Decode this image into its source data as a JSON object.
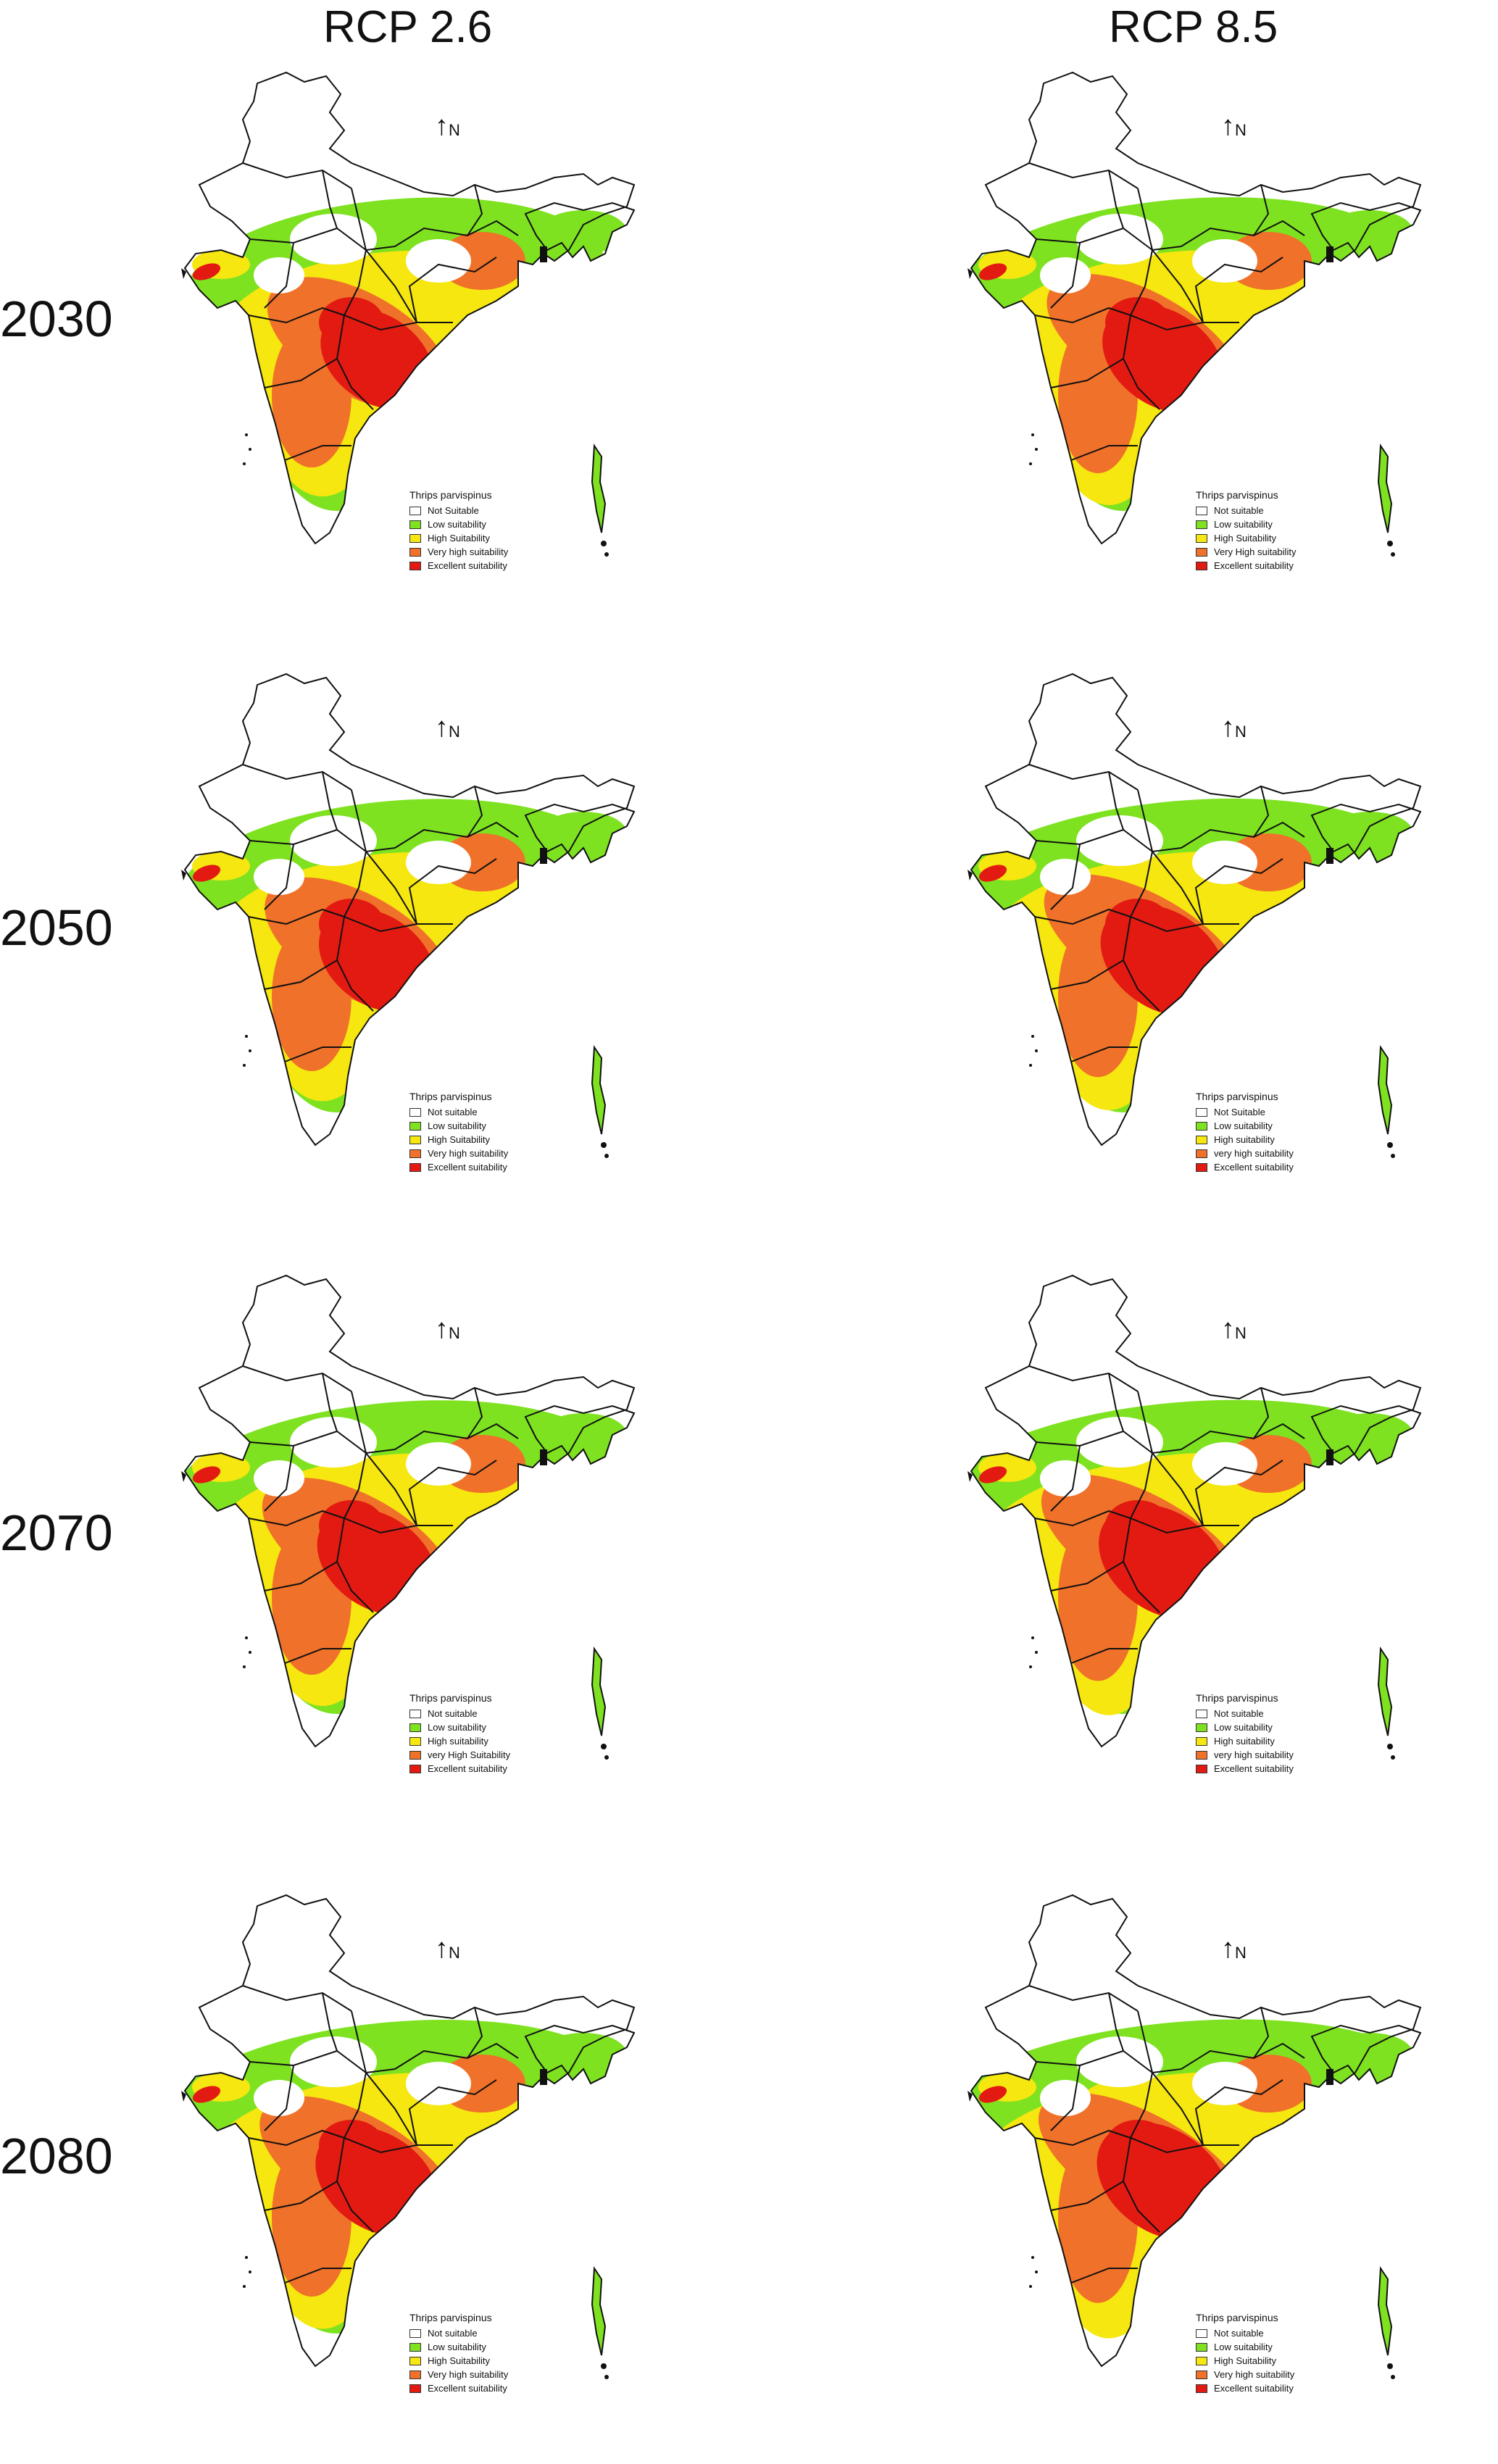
{
  "columns": [
    "RCP 2.6",
    "RCP 8.5"
  ],
  "years": [
    "2030",
    "2050",
    "2070",
    "2080"
  ],
  "north_label": "N",
  "colors": {
    "not_suitable": "#ffffff",
    "low": "#7ee221",
    "high": "#f5e70f",
    "very_high": "#f0712a",
    "excellent": "#e31a12",
    "border": "#111111"
  },
  "panels": [
    {
      "col": 0,
      "row": 0,
      "legend": {
        "title": "Thrips parvispinus",
        "items": [
          "Not Suitable",
          "Low suitability",
          "High Suitability",
          "Very high suitability",
          "Excellent suitability"
        ]
      }
    },
    {
      "col": 1,
      "row": 0,
      "legend": {
        "title": "Thrips parvispinus",
        "items": [
          "Not suitable",
          "Low suitability",
          "High Suitability",
          "Very High suitability",
          "Excellent suitability"
        ]
      }
    },
    {
      "col": 0,
      "row": 1,
      "legend": {
        "title": "Thrips parvispinus",
        "items": [
          "Not suitable",
          "Low suitability",
          "High Suitability",
          "Very high suitability",
          "Excellent suitability"
        ]
      }
    },
    {
      "col": 1,
      "row": 1,
      "legend": {
        "title": "Thrips parvispinus",
        "items": [
          "Not Suitable",
          "Low suitability",
          "High suitability",
          "very high suitability",
          "Excellent suitability"
        ]
      }
    },
    {
      "col": 0,
      "row": 2,
      "legend": {
        "title": "Thrips parvispinus",
        "items": [
          "Not suitable",
          "Low suitability",
          "High suitability",
          "very High Suitability",
          "Excellent suitability"
        ]
      }
    },
    {
      "col": 1,
      "row": 2,
      "legend": {
        "title": "Thrips parvispinus",
        "items": [
          "Not suitable",
          "Low suitability",
          "High suitability",
          "very high suitability",
          "Excellent suitability"
        ]
      }
    },
    {
      "col": 0,
      "row": 3,
      "legend": {
        "title": "Thrips parvispinus",
        "items": [
          "Not suitable",
          "Low suitability",
          "High Suitability",
          "Very high suitability",
          "Excellent suitability"
        ]
      }
    },
    {
      "col": 1,
      "row": 3,
      "legend": {
        "title": "Thrips parvispinus",
        "items": [
          "Not suitable",
          "Low suitability",
          "High Suitability",
          "Very high suitability",
          "Excellent suitability"
        ]
      }
    }
  ]
}
